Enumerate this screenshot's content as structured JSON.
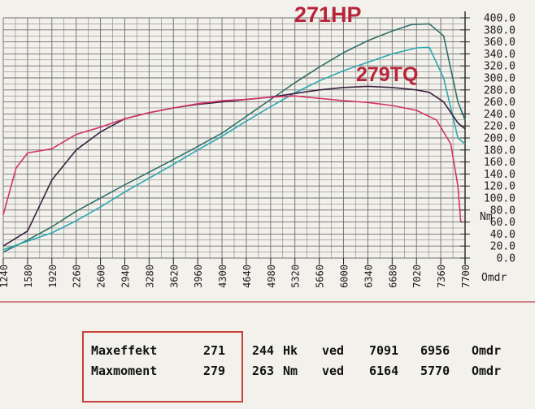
{
  "chart_data": {
    "type": "line",
    "x_unit": "Omdr",
    "x_ticks": [
      1240,
      1580,
      1920,
      2260,
      2600,
      2940,
      3280,
      3620,
      3960,
      4300,
      4640,
      4980,
      5320,
      5660,
      6000,
      6340,
      6680,
      7020,
      7360,
      7700
    ],
    "x_range": [
      1240,
      7700
    ],
    "y_unit": "Nm",
    "y_ticks": [
      "0.0",
      "20.0",
      "40.0",
      "60.0",
      "80.0",
      "100.0",
      "120.0",
      "140.0",
      "160.0",
      "180.0",
      "200.0",
      "220.0",
      "240.0",
      "260.0",
      "280.0",
      "300.0",
      "320.0",
      "340.0",
      "360.0",
      "380.0",
      "400.0"
    ],
    "y_range": [
      0,
      400
    ],
    "grid": true,
    "annotations": {
      "hp": "271HP",
      "tq": "279TQ"
    },
    "series": [
      {
        "color": "#2f6f6a",
        "points": [
          [
            1240,
            10
          ],
          [
            1580,
            30
          ],
          [
            1920,
            52
          ],
          [
            2260,
            78
          ],
          [
            2600,
            100
          ],
          [
            2940,
            122
          ],
          [
            3280,
            143
          ],
          [
            3620,
            164
          ],
          [
            3960,
            186
          ],
          [
            4300,
            208
          ],
          [
            4640,
            236
          ],
          [
            4980,
            264
          ],
          [
            5320,
            292
          ],
          [
            5660,
            318
          ],
          [
            6000,
            342
          ],
          [
            6340,
            362
          ],
          [
            6680,
            378
          ],
          [
            6956,
            389
          ],
          [
            7200,
            390
          ],
          [
            7400,
            370
          ],
          [
            7600,
            260
          ],
          [
            7700,
            230
          ]
        ]
      },
      {
        "color": "#2aa8b0",
        "points": [
          [
            1240,
            14
          ],
          [
            1580,
            28
          ],
          [
            1920,
            42
          ],
          [
            2260,
            62
          ],
          [
            2600,
            85
          ],
          [
            2940,
            110
          ],
          [
            3280,
            133
          ],
          [
            3620,
            156
          ],
          [
            3960,
            180
          ],
          [
            4300,
            203
          ],
          [
            4640,
            228
          ],
          [
            4980,
            252
          ],
          [
            5320,
            275
          ],
          [
            5660,
            295
          ],
          [
            6000,
            312
          ],
          [
            6340,
            326
          ],
          [
            6680,
            340
          ],
          [
            7020,
            350
          ],
          [
            7200,
            351
          ],
          [
            7400,
            300
          ],
          [
            7600,
            200
          ],
          [
            7700,
            190
          ]
        ]
      },
      {
        "color": "#3a2140",
        "points": [
          [
            1240,
            20
          ],
          [
            1580,
            45
          ],
          [
            1920,
            130
          ],
          [
            2260,
            180
          ],
          [
            2600,
            210
          ],
          [
            2940,
            232
          ],
          [
            3280,
            242
          ],
          [
            3620,
            250
          ],
          [
            3960,
            256
          ],
          [
            4300,
            260
          ],
          [
            4640,
            264
          ],
          [
            4980,
            268
          ],
          [
            5320,
            274
          ],
          [
            5660,
            280
          ],
          [
            6000,
            284
          ],
          [
            6340,
            286
          ],
          [
            6680,
            284
          ],
          [
            7020,
            280
          ],
          [
            7200,
            276
          ],
          [
            7400,
            260
          ],
          [
            7600,
            225
          ],
          [
            7700,
            215
          ]
        ]
      },
      {
        "color": "#d4336a",
        "points": [
          [
            1240,
            72
          ],
          [
            1420,
            150
          ],
          [
            1580,
            175
          ],
          [
            1920,
            182
          ],
          [
            2260,
            206
          ],
          [
            2600,
            218
          ],
          [
            2940,
            232
          ],
          [
            3280,
            242
          ],
          [
            3620,
            250
          ],
          [
            3960,
            257
          ],
          [
            4300,
            262
          ],
          [
            4640,
            264
          ],
          [
            4980,
            268
          ],
          [
            5320,
            270
          ],
          [
            5660,
            266
          ],
          [
            6000,
            262
          ],
          [
            6340,
            259
          ],
          [
            6680,
            254
          ],
          [
            7020,
            246
          ],
          [
            7300,
            230
          ],
          [
            7500,
            190
          ],
          [
            7600,
            120
          ],
          [
            7640,
            60
          ]
        ]
      }
    ]
  },
  "summary": {
    "rows": [
      {
        "label": "Maxeffekt",
        "v1": "271",
        "v2": "244",
        "unit": "Hk",
        "ved": "ved",
        "rpm1": "7091",
        "rpm2": "6956",
        "rpm_unit": "Omdr"
      },
      {
        "label": "Maxmoment",
        "v1": "279",
        "v2": "263",
        "unit": "Nm",
        "ved": "ved",
        "rpm1": "6164",
        "rpm2": "5770",
        "rpm_unit": "Omdr"
      }
    ]
  }
}
